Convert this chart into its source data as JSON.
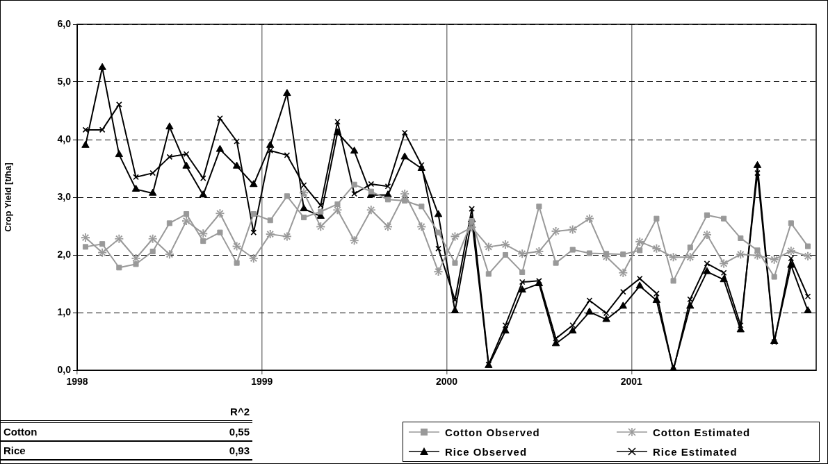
{
  "chart_data": {
    "type": "line",
    "ylabel": "Crop Yield [t/ha]",
    "x": [
      1998.045,
      1998.136,
      1998.227,
      1998.318,
      1998.409,
      1998.5,
      1998.591,
      1998.682,
      1998.773,
      1998.864,
      1998.955,
      1999.045,
      1999.136,
      1999.227,
      1999.318,
      1999.409,
      1999.5,
      1999.591,
      1999.682,
      1999.773,
      1999.864,
      1999.955,
      2000.045,
      2000.136,
      2000.227,
      2000.318,
      2000.409,
      2000.5,
      2000.591,
      2000.682,
      2000.773,
      2000.864,
      2000.955,
      2001.045,
      2001.136,
      2001.227,
      2001.318,
      2001.409,
      2001.5,
      2001.591,
      2001.682,
      2001.773,
      2001.864,
      2001.955
    ],
    "series": [
      {
        "name": "Cotton Observed",
        "color": "#999999",
        "marker": "square",
        "values": [
          2.14,
          2.19,
          1.78,
          1.84,
          2.06,
          2.55,
          2.71,
          2.24,
          2.39,
          1.86,
          2.71,
          2.6,
          3.02,
          2.65,
          2.75,
          2.88,
          3.22,
          3.1,
          2.96,
          2.94,
          2.84,
          2.39,
          1.86,
          2.59,
          1.67,
          2.0,
          1.7,
          2.84,
          1.86,
          2.09,
          2.03,
          2.02,
          2.01,
          2.08,
          2.63,
          1.55,
          2.13,
          2.69,
          2.63,
          2.29,
          2.08,
          1.62,
          2.55,
          2.15
        ]
      },
      {
        "name": "Cotton Estimated",
        "color": "#999999",
        "marker": "star",
        "values": [
          2.3,
          2.04,
          2.28,
          1.94,
          2.28,
          2.01,
          2.59,
          2.37,
          2.72,
          2.15,
          1.94,
          2.36,
          2.32,
          3.08,
          2.49,
          2.78,
          2.25,
          2.78,
          2.49,
          3.06,
          2.49,
          1.71,
          2.32,
          2.48,
          2.14,
          2.18,
          2.02,
          2.06,
          2.41,
          2.44,
          2.63,
          1.97,
          1.69,
          2.23,
          2.11,
          1.96,
          1.96,
          2.35,
          1.85,
          2.01,
          1.99,
          1.92,
          2.07,
          1.98
        ]
      },
      {
        "name": "Rice Observed",
        "color": "#000000",
        "marker": "triangle",
        "values": [
          3.9,
          5.25,
          3.74,
          3.14,
          3.07,
          4.22,
          3.54,
          3.04,
          3.83,
          3.54,
          3.22,
          3.9,
          4.8,
          2.8,
          2.67,
          4.12,
          3.8,
          3.04,
          3.04,
          3.7,
          3.5,
          2.7,
          1.03,
          2.61,
          0.08,
          0.68,
          1.39,
          1.5,
          0.46,
          0.68,
          1.01,
          0.88,
          1.11,
          1.46,
          1.21,
          0.02,
          1.11,
          1.71,
          1.57,
          0.7,
          3.55,
          0.5,
          1.82,
          1.03
        ]
      },
      {
        "name": "Rice Estimated",
        "color": "#000000",
        "marker": "cross",
        "values": [
          4.17,
          4.17,
          4.61,
          3.35,
          3.42,
          3.7,
          3.75,
          3.33,
          4.37,
          3.97,
          2.39,
          3.81,
          3.73,
          3.21,
          2.86,
          4.31,
          3.06,
          3.23,
          3.19,
          4.12,
          3.56,
          2.11,
          1.22,
          2.8,
          0.1,
          0.78,
          1.53,
          1.55,
          0.55,
          0.78,
          1.21,
          0.99,
          1.36,
          1.59,
          1.33,
          0.0,
          1.23,
          1.85,
          1.69,
          0.78,
          3.42,
          0.49,
          1.94,
          1.28
        ]
      }
    ],
    "xlim": [
      1998,
      2002
    ],
    "xticks": [
      1998,
      1999,
      2000,
      2001
    ],
    "ylim": [
      0,
      6
    ],
    "yticks": [
      {
        "value": 0,
        "label": "0,0"
      },
      {
        "value": 1,
        "label": "1,0"
      },
      {
        "value": 2,
        "label": "2,0"
      },
      {
        "value": 3,
        "label": "3,0"
      },
      {
        "value": 4,
        "label": "4,0"
      },
      {
        "value": 5,
        "label": "5,0"
      },
      {
        "value": 6,
        "label": "6,0"
      }
    ],
    "grid": true,
    "legend": "bottom right",
    "line_style": "solid",
    "annotations": [
      "R^2",
      "Cotton",
      "0,55",
      "Rice",
      "0,93"
    ]
  }
}
